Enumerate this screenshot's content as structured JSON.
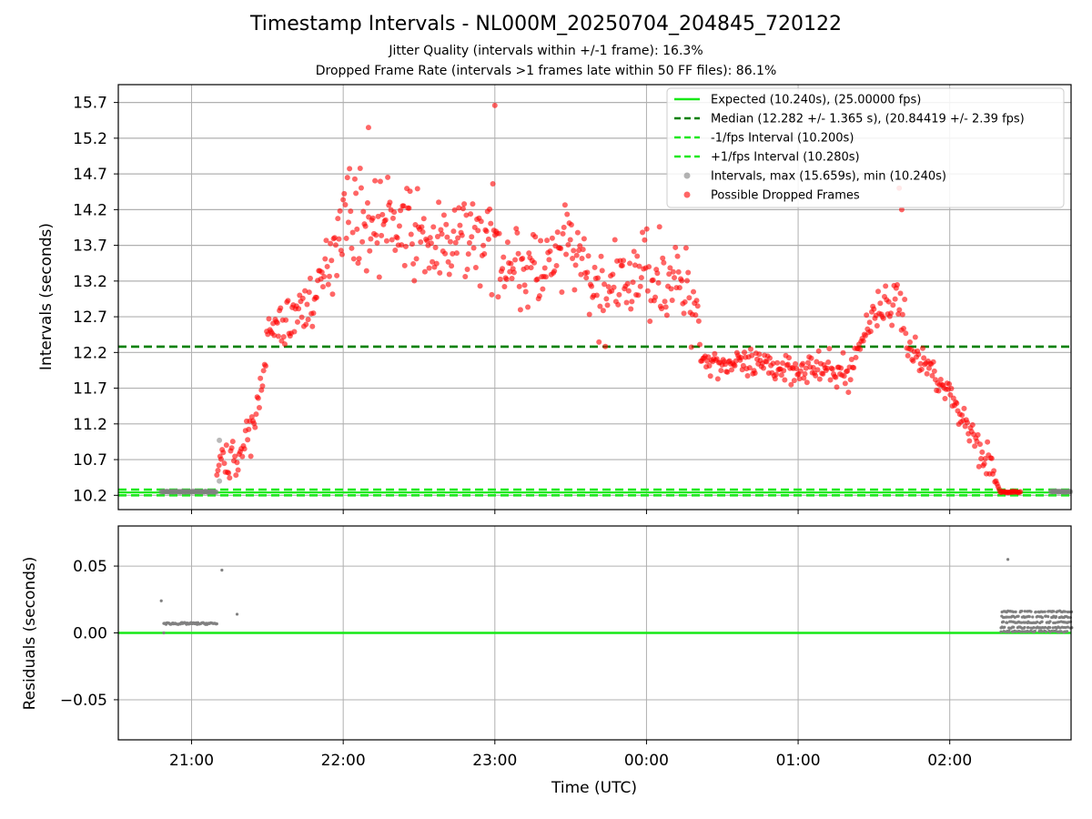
{
  "figure": {
    "title": "Timestamp Intervals - NL000M_20250704_204845_720122",
    "subtitle_1": "Jitter Quality (intervals within +/-1 frame): 16.3%",
    "subtitle_2": "Dropped Frame Rate (intervals >1 frames late within 50 FF files): 86.1%"
  },
  "colors": {
    "expected": "#17e817",
    "median": "#008000",
    "fps_interval": "#1fe81f",
    "intervals": "#808080",
    "dropped": "#ff0000",
    "grid": "#b0b0b0"
  },
  "chart_data": [
    {
      "type": "scatter",
      "panel": "intervals",
      "ylabel": "Intervals (seconds)",
      "xlabel": "",
      "grid": true,
      "legend_position": "top-right",
      "x_ticks": [
        "21:00",
        "22:00",
        "23:00",
        "00:00",
        "01:00",
        "02:00"
      ],
      "y_ticks": [
        "10.2",
        "10.7",
        "11.2",
        "11.7",
        "12.2",
        "12.7",
        "13.2",
        "13.7",
        "14.2",
        "14.7",
        "15.2",
        "15.7"
      ],
      "x_range": [
        "20:31",
        "02:48"
      ],
      "ylim": [
        10.0,
        15.95
      ],
      "lines": [
        {
          "name": "Expected (10.240s), (25.00000 fps)",
          "y": 10.24,
          "style": "solid",
          "color": "#17e817"
        },
        {
          "name": "Median (12.282 +/- 1.365 s), (20.84419 +/- 2.39 fps)",
          "y": 12.282,
          "style": "dashed",
          "color": "#008000"
        },
        {
          "name": "-1/fps Interval (10.200s)",
          "y": 10.2,
          "style": "dashed",
          "color": "#1fe81f"
        },
        {
          "name": "+1/fps Interval (10.280s)",
          "y": 10.28,
          "style": "dashed",
          "color": "#1fe81f"
        }
      ],
      "series": [
        {
          "name": "Intervals, max (15.659s), min (10.240s)",
          "color": "#808080",
          "points": [
            [
              "20:48",
              10.25
            ],
            [
              "21:00",
              10.25
            ],
            [
              "21:10",
              10.25
            ],
            [
              "21:11",
              10.97
            ],
            [
              "21:11",
              10.4
            ],
            [
              "02:40",
              10.25
            ],
            [
              "02:48",
              10.25
            ]
          ]
        },
        {
          "name": "Possible Dropped Frames",
          "color": "#ff0000",
          "trend": [
            [
              "21:10",
              10.6
            ],
            [
              "21:20",
              10.8
            ],
            [
              "21:25",
              11.2
            ],
            [
              "21:30",
              12.4
            ],
            [
              "21:40",
              12.7
            ],
            [
              "21:50",
              13.0
            ],
            [
              "22:00",
              14.2
            ],
            [
              "22:10",
              14.0
            ],
            [
              "22:20",
              14.0
            ],
            [
              "22:30",
              13.8
            ],
            [
              "22:40",
              13.6
            ],
            [
              "22:50",
              13.9
            ],
            [
              "23:00",
              13.7
            ],
            [
              "23:10",
              13.4
            ],
            [
              "23:20",
              13.3
            ],
            [
              "23:30",
              13.7
            ],
            [
              "23:40",
              13.0
            ],
            [
              "23:50",
              13.1
            ],
            [
              "00:00",
              13.4
            ],
            [
              "00:10",
              13.2
            ],
            [
              "00:20",
              12.9
            ],
            [
              "00:22",
              12.1
            ],
            [
              "00:40",
              12.0
            ],
            [
              "01:00",
              12.0
            ],
            [
              "01:20",
              11.9
            ],
            [
              "01:30",
              12.8
            ],
            [
              "01:40",
              12.9
            ],
            [
              "01:45",
              12.2
            ],
            [
              "01:55",
              11.9
            ],
            [
              "02:05",
              11.3
            ],
            [
              "02:15",
              10.7
            ],
            [
              "02:20",
              10.24
            ],
            [
              "02:28",
              10.24
            ]
          ]
        }
      ]
    },
    {
      "type": "scatter",
      "panel": "residuals",
      "ylabel": "Residuals (seconds)",
      "xlabel": "Time (UTC)",
      "grid": true,
      "x_ticks": [
        "21:00",
        "22:00",
        "23:00",
        "00:00",
        "01:00",
        "02:00"
      ],
      "y_ticks": [
        "−0.05",
        "0.00",
        "0.05"
      ],
      "x_range": [
        "20:31",
        "02:48"
      ],
      "ylim": [
        -0.08,
        0.08
      ],
      "zero_line": {
        "y": 0.0,
        "color": "#17e817"
      },
      "series": [
        {
          "name": "Residuals",
          "color": "#808080",
          "points": [
            [
              "20:48",
              0.024
            ],
            [
              "20:49",
              0.0
            ],
            [
              "21:12",
              0.047
            ],
            [
              "21:18",
              0.014
            ],
            [
              "02:23",
              0.055
            ]
          ],
          "bands": [
            [
              "20:49",
              "21:10",
              0.006,
              0.009
            ],
            [
              "02:20",
              "02:48",
              0.0,
              0.017
            ]
          ]
        }
      ]
    }
  ]
}
